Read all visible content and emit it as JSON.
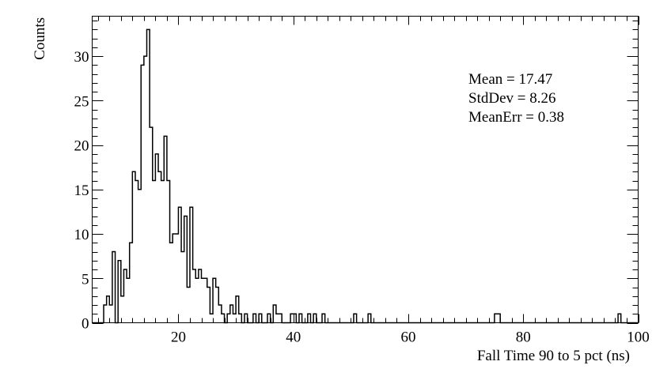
{
  "chart_data": {
    "type": "histogram",
    "title": "",
    "xlabel": "Fall Time 90 to 5 pct (ns)",
    "ylabel": "Counts",
    "xlim": [
      5,
      100
    ],
    "ylim": [
      0,
      34.5
    ],
    "x_ticks": [
      20,
      40,
      60,
      80,
      100
    ],
    "y_ticks": [
      0,
      5,
      10,
      15,
      20,
      25,
      30
    ],
    "bin_width": 0.5,
    "grid": false,
    "line_color": "#000000",
    "stats": {
      "mean_label": "Mean = 17.47",
      "stddev_label": "StdDev = 8.26",
      "meanerr_label": "MeanErr = 0.38"
    },
    "bins": [
      [
        7.0,
        2
      ],
      [
        7.5,
        3
      ],
      [
        8.0,
        2
      ],
      [
        8.5,
        8
      ],
      [
        9.0,
        0
      ],
      [
        9.5,
        7
      ],
      [
        10.0,
        3
      ],
      [
        10.5,
        6
      ],
      [
        11.0,
        5
      ],
      [
        11.5,
        9
      ],
      [
        12.0,
        17
      ],
      [
        12.5,
        16
      ],
      [
        13.0,
        15
      ],
      [
        13.5,
        29
      ],
      [
        14.0,
        30
      ],
      [
        14.5,
        33
      ],
      [
        15.0,
        22
      ],
      [
        15.5,
        16
      ],
      [
        16.0,
        19
      ],
      [
        16.5,
        17
      ],
      [
        17.0,
        16
      ],
      [
        17.5,
        21
      ],
      [
        18.0,
        16
      ],
      [
        18.5,
        9
      ],
      [
        19.0,
        10
      ],
      [
        19.5,
        10
      ],
      [
        20.0,
        13
      ],
      [
        20.5,
        8
      ],
      [
        21.0,
        12
      ],
      [
        21.5,
        4
      ],
      [
        22.0,
        13
      ],
      [
        22.5,
        6
      ],
      [
        23.0,
        5
      ],
      [
        23.5,
        6
      ],
      [
        24.0,
        5
      ],
      [
        24.5,
        5
      ],
      [
        25.0,
        4
      ],
      [
        25.5,
        1
      ],
      [
        26.0,
        5
      ],
      [
        26.5,
        4
      ],
      [
        27.0,
        2
      ],
      [
        27.5,
        1
      ],
      [
        28.0,
        0
      ],
      [
        28.5,
        1
      ],
      [
        29.0,
        2
      ],
      [
        29.5,
        1
      ],
      [
        30.0,
        3
      ],
      [
        30.5,
        1
      ],
      [
        31.5,
        1
      ],
      [
        33.0,
        1
      ],
      [
        34.0,
        1
      ],
      [
        35.5,
        1
      ],
      [
        36.5,
        2
      ],
      [
        37.0,
        1
      ],
      [
        37.5,
        1
      ],
      [
        39.5,
        1
      ],
      [
        40.0,
        1
      ],
      [
        41.0,
        1
      ],
      [
        42.5,
        1
      ],
      [
        43.5,
        1
      ],
      [
        45.0,
        1
      ],
      [
        50.5,
        1
      ],
      [
        53.0,
        1
      ],
      [
        75.0,
        1
      ],
      [
        75.5,
        1
      ],
      [
        96.5,
        1
      ]
    ]
  }
}
